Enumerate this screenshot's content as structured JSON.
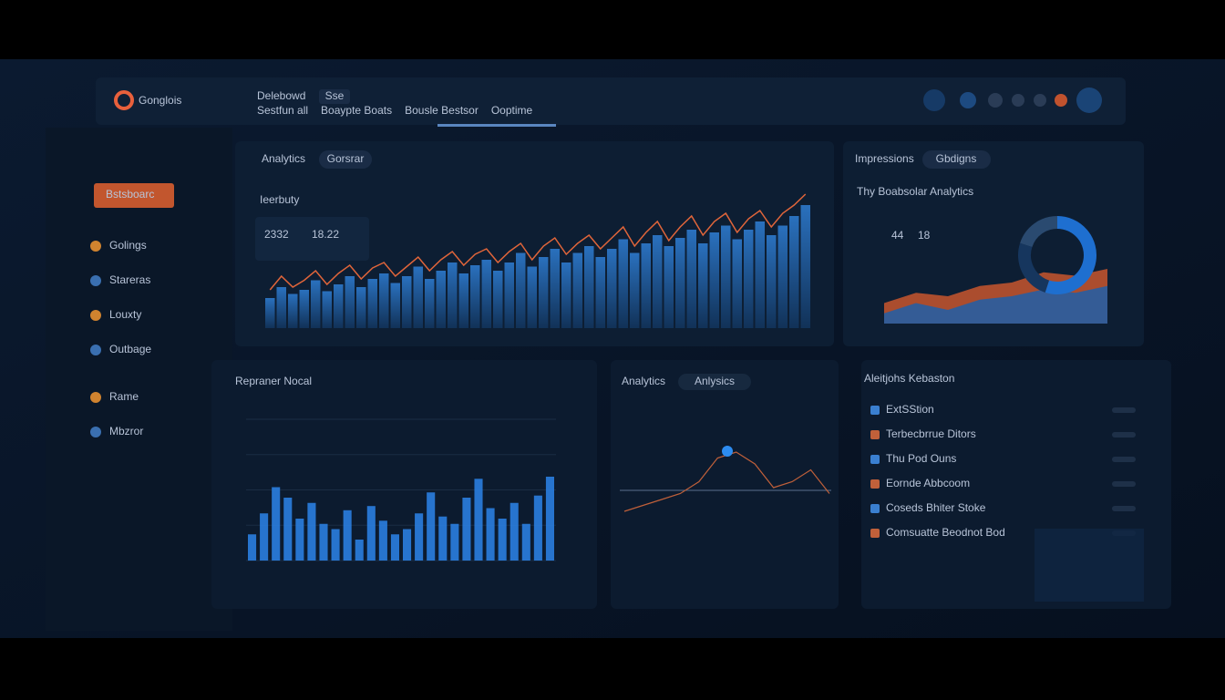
{
  "header": {
    "brand": "Gonglois",
    "title": "Delebowd",
    "badge": "Sse",
    "breadcrumbs": [
      "Sestfun all",
      "Boaypte Boats",
      "Bousle Bestsor",
      "Ooptime"
    ]
  },
  "sidebar": {
    "items": [
      "Bstsboarc",
      "Golings",
      "Stareras",
      "Louxty",
      "Outbage",
      "Rame",
      "Mbzror"
    ]
  },
  "main_panel": {
    "tabs": [
      "Analytics",
      "Gorsrar"
    ],
    "label": "Ieerbuty",
    "stats": [
      "2332",
      "18.22"
    ],
    "bars": [
      22,
      30,
      25,
      28,
      35,
      27,
      32,
      38,
      30,
      36,
      40,
      33,
      38,
      45,
      36,
      42,
      48,
      40,
      46,
      50,
      42,
      48,
      55,
      45,
      52,
      58,
      48,
      55,
      60,
      52,
      58,
      65,
      55,
      62,
      68,
      60,
      66,
      72,
      62,
      70,
      75,
      65,
      72,
      78,
      68,
      75,
      82,
      90
    ],
    "line": [
      28,
      38,
      30,
      35,
      42,
      32,
      40,
      46,
      36,
      44,
      48,
      38,
      45,
      52,
      42,
      50,
      56,
      46,
      54,
      58,
      48,
      56,
      62,
      50,
      60,
      66,
      54,
      62,
      68,
      58,
      66,
      74,
      60,
      70,
      78,
      64,
      74,
      82,
      68,
      78,
      84,
      70,
      80,
      86,
      74,
      84,
      90,
      98
    ]
  },
  "impressions_panel": {
    "title": "Impressions",
    "pill": "Gbdigns",
    "subtitle": "Thy Boabsolar Analytics",
    "stats": [
      "44",
      "18"
    ],
    "area_orange": [
      30,
      45,
      40,
      55,
      60,
      75,
      70,
      80
    ],
    "area_blue": [
      15,
      30,
      20,
      35,
      40,
      50,
      45,
      55
    ],
    "donut": [
      55,
      25,
      20
    ]
  },
  "bars_panel": {
    "title": "Repraner Nocal",
    "values": [
      25,
      45,
      70,
      60,
      40,
      55,
      35,
      30,
      48,
      20,
      52,
      38,
      25,
      30,
      45,
      65,
      42,
      35,
      60,
      78,
      50,
      40,
      55,
      35,
      62,
      80
    ]
  },
  "trend_panel": {
    "title": "Analytics",
    "pill": "Anlysics",
    "values": [
      30,
      35,
      40,
      45,
      55,
      75,
      80,
      70,
      50,
      55,
      65,
      45
    ]
  },
  "list_panel": {
    "title": "Aleitjohs Kebaston",
    "items": [
      "ExtSStion",
      "Terbecbrrue Ditors",
      "Thu Pod Ouns",
      "Eornde Abbcoom",
      "Coseds Bhiter Stoke",
      "Comsuatte Beodnot Bod"
    ]
  }
}
